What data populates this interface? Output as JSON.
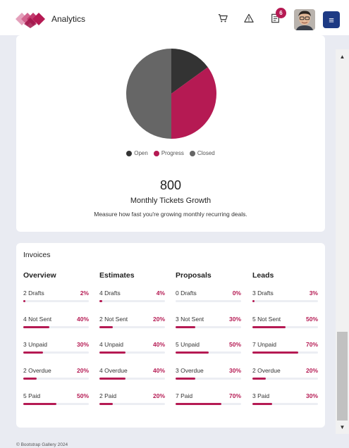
{
  "header": {
    "title": "Analytics",
    "notification_count": "6",
    "menu_label": "≡",
    "icons": [
      "logo-icon",
      "cart-icon",
      "warning-icon",
      "document-icon",
      "avatar",
      "menu-icon"
    ]
  },
  "tickets": {
    "total": "800",
    "title": "Monthly Tickets Growth",
    "description": "Measure how fast you're growing monthly recurring deals."
  },
  "chart_data": {
    "type": "pie",
    "categories": [
      "Open",
      "Progress",
      "Closed"
    ],
    "values": [
      15,
      35,
      50
    ],
    "colors": [
      "#333333",
      "#b51a53",
      "#666666"
    ]
  },
  "invoices": {
    "title": "Invoices",
    "columns": [
      {
        "heading": "Overview",
        "rows": [
          {
            "label": "2 Drafts",
            "pct": "2%",
            "value": 2
          },
          {
            "label": "4 Not Sent",
            "pct": "40%",
            "value": 40
          },
          {
            "label": "3 Unpaid",
            "pct": "30%",
            "value": 30
          },
          {
            "label": "2 Overdue",
            "pct": "20%",
            "value": 20
          },
          {
            "label": "5 Paid",
            "pct": "50%",
            "value": 50
          }
        ]
      },
      {
        "heading": "Estimates",
        "rows": [
          {
            "label": "4 Drafts",
            "pct": "4%",
            "value": 4
          },
          {
            "label": "2 Not Sent",
            "pct": "20%",
            "value": 20
          },
          {
            "label": "4 Unpaid",
            "pct": "40%",
            "value": 40
          },
          {
            "label": "4 Overdue",
            "pct": "40%",
            "value": 40
          },
          {
            "label": "2 Paid",
            "pct": "20%",
            "value": 20
          }
        ]
      },
      {
        "heading": "Proposals",
        "rows": [
          {
            "label": "0 Drafts",
            "pct": "0%",
            "value": 0
          },
          {
            "label": "3 Not Sent",
            "pct": "30%",
            "value": 30
          },
          {
            "label": "5 Unpaid",
            "pct": "50%",
            "value": 50
          },
          {
            "label": "3 Overdue",
            "pct": "30%",
            "value": 30
          },
          {
            "label": "7 Paid",
            "pct": "70%",
            "value": 70
          }
        ]
      },
      {
        "heading": "Leads",
        "rows": [
          {
            "label": "3 Drafts",
            "pct": "3%",
            "value": 3
          },
          {
            "label": "5 Not Sent",
            "pct": "50%",
            "value": 50
          },
          {
            "label": "7 Unpaid",
            "pct": "70%",
            "value": 70
          },
          {
            "label": "2 Overdue",
            "pct": "20%",
            "value": 20
          },
          {
            "label": "3 Paid",
            "pct": "30%",
            "value": 30
          }
        ]
      }
    ]
  },
  "footer": {
    "text": "© Bootstrap Gallery 2024"
  },
  "scrollbar": {
    "up": "▲",
    "down": "▼"
  }
}
